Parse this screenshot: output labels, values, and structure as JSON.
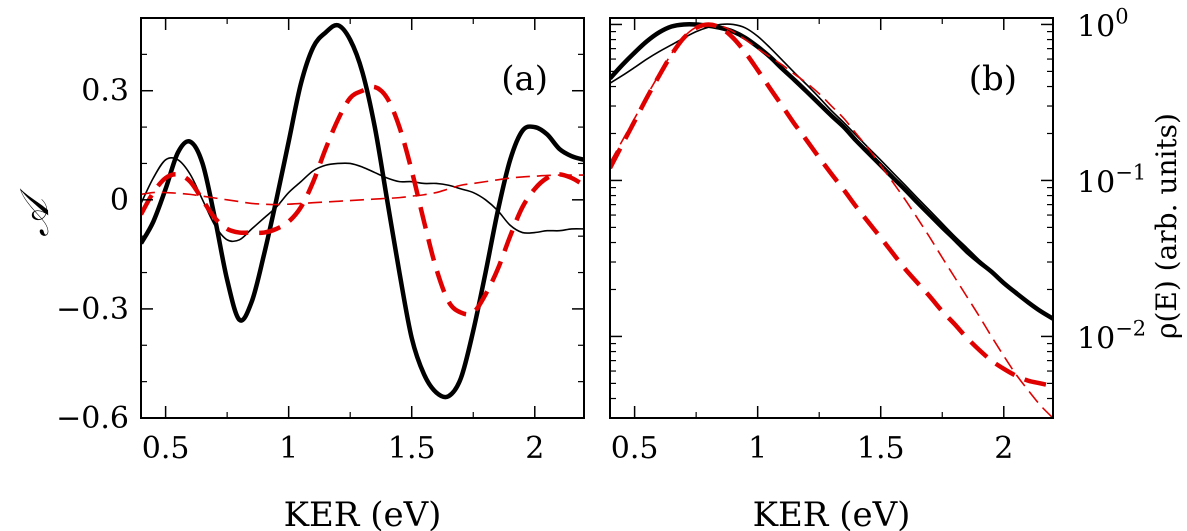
{
  "chart_data": [
    {
      "type": "line",
      "panel_label": "(a)",
      "xlabel": "KER (eV)",
      "ylabel": "𝒜",
      "xlim": [
        0.4,
        2.2
      ],
      "ylim": [
        -0.6,
        0.5
      ],
      "xticks": [
        {
          "v": 0.5,
          "label": "0.5"
        },
        {
          "v": 1,
          "label": "1"
        },
        {
          "v": 1.5,
          "label": "1.5"
        },
        {
          "v": 2,
          "label": "2"
        }
      ],
      "yticks": [
        {
          "v": -0.6,
          "label": "−0.6"
        },
        {
          "v": -0.3,
          "label": "−0.3"
        },
        {
          "v": 0,
          "label": "0"
        },
        {
          "v": 0.3,
          "label": "0.3"
        }
      ],
      "series": [
        {
          "style": "black-thick",
          "color": "#000000",
          "x": [
            0.4,
            0.45,
            0.5,
            0.55,
            0.6,
            0.65,
            0.7,
            0.75,
            0.8,
            0.85,
            0.9,
            0.95,
            1.0,
            1.05,
            1.1,
            1.15,
            1.2,
            1.25,
            1.3,
            1.35,
            1.4,
            1.45,
            1.5,
            1.55,
            1.6,
            1.65,
            1.7,
            1.75,
            1.8,
            1.85,
            1.9,
            1.95,
            2.0,
            2.05,
            2.1,
            2.15,
            2.2
          ],
          "y": [
            -0.12,
            -0.06,
            0.03,
            0.13,
            0.16,
            0.1,
            -0.05,
            -0.22,
            -0.33,
            -0.28,
            -0.15,
            0.0,
            0.16,
            0.32,
            0.42,
            0.46,
            0.48,
            0.44,
            0.35,
            0.2,
            0.0,
            -0.2,
            -0.38,
            -0.48,
            -0.53,
            -0.54,
            -0.49,
            -0.36,
            -0.2,
            -0.03,
            0.11,
            0.19,
            0.2,
            0.18,
            0.14,
            0.12,
            0.11
          ]
        },
        {
          "style": "black-thin",
          "color": "#000000",
          "x": [
            0.4,
            0.45,
            0.5,
            0.55,
            0.6,
            0.65,
            0.7,
            0.75,
            0.8,
            0.85,
            0.9,
            0.95,
            1.0,
            1.05,
            1.1,
            1.15,
            1.2,
            1.25,
            1.3,
            1.35,
            1.4,
            1.45,
            1.5,
            1.55,
            1.6,
            1.65,
            1.7,
            1.75,
            1.8,
            1.85,
            1.9,
            1.95,
            2.0,
            2.05,
            2.1,
            2.15,
            2.2
          ],
          "y": [
            -0.01,
            0.06,
            0.11,
            0.11,
            0.07,
            0.0,
            -0.07,
            -0.11,
            -0.11,
            -0.08,
            -0.05,
            -0.02,
            0.02,
            0.05,
            0.08,
            0.095,
            0.1,
            0.1,
            0.09,
            0.075,
            0.06,
            0.05,
            0.05,
            0.045,
            0.045,
            0.04,
            0.03,
            0.02,
            0.0,
            -0.03,
            -0.07,
            -0.09,
            -0.09,
            -0.085,
            -0.085,
            -0.08,
            -0.08
          ]
        },
        {
          "style": "red-thick-dashed",
          "color": "#e00000",
          "x": [
            0.4,
            0.45,
            0.5,
            0.55,
            0.6,
            0.65,
            0.7,
            0.75,
            0.8,
            0.85,
            0.9,
            0.95,
            1.0,
            1.05,
            1.1,
            1.15,
            1.2,
            1.25,
            1.3,
            1.35,
            1.4,
            1.45,
            1.5,
            1.55,
            1.6,
            1.65,
            1.7,
            1.75,
            1.8,
            1.85,
            1.9,
            1.95,
            2.0,
            2.05,
            2.1,
            2.15,
            2.2
          ],
          "y": [
            -0.04,
            0.02,
            0.06,
            0.07,
            0.05,
            0.0,
            -0.05,
            -0.08,
            -0.09,
            -0.09,
            -0.09,
            -0.08,
            -0.06,
            -0.02,
            0.05,
            0.14,
            0.22,
            0.28,
            0.3,
            0.31,
            0.28,
            0.2,
            0.08,
            -0.06,
            -0.19,
            -0.28,
            -0.31,
            -0.31,
            -0.26,
            -0.19,
            -0.1,
            -0.02,
            0.03,
            0.06,
            0.07,
            0.06,
            0.04
          ]
        },
        {
          "style": "red-thin-dashed",
          "color": "#e00000",
          "x": [
            0.4,
            0.45,
            0.5,
            0.55,
            0.6,
            0.65,
            0.7,
            0.75,
            0.8,
            0.85,
            0.9,
            0.95,
            1.0,
            1.05,
            1.1,
            1.15,
            1.2,
            1.25,
            1.3,
            1.35,
            1.4,
            1.45,
            1.5,
            1.55,
            1.6,
            1.65,
            1.7,
            1.75,
            1.8,
            1.85,
            1.9,
            1.95,
            2.0,
            2.05,
            2.1,
            2.15,
            2.2
          ],
          "y": [
            0.015,
            0.02,
            0.02,
            0.018,
            0.015,
            0.01,
            0.005,
            0.0,
            -0.005,
            -0.01,
            -0.012,
            -0.013,
            -0.012,
            -0.01,
            -0.008,
            -0.006,
            -0.004,
            -0.002,
            0.0,
            0.002,
            0.004,
            0.006,
            0.01,
            0.014,
            0.02,
            0.03,
            0.04,
            0.045,
            0.05,
            0.055,
            0.06,
            0.063,
            0.065,
            0.067,
            0.068,
            0.068,
            0.068
          ]
        }
      ]
    },
    {
      "type": "line",
      "panel_label": "(b)",
      "xlabel": "KER (eV)",
      "ylabel": "ρ(E) (arb. units)",
      "xlim": [
        0.4,
        2.2
      ],
      "yscale": "log",
      "ylim": [
        0.003,
        1.1
      ],
      "xticks": [
        {
          "v": 0.5,
          "label": "0.5"
        },
        {
          "v": 1,
          "label": "1"
        },
        {
          "v": 1.5,
          "label": "1.5"
        },
        {
          "v": 2,
          "label": "2"
        }
      ],
      "yticks": [
        {
          "v": 1,
          "base": "10",
          "exp": "0"
        },
        {
          "v": 0.1,
          "base": "10",
          "exp": "−1"
        },
        {
          "v": 0.01,
          "base": "10",
          "exp": "−2"
        }
      ],
      "series": [
        {
          "style": "black-thick",
          "color": "#000000",
          "x": [
            0.4,
            0.45,
            0.5,
            0.55,
            0.6,
            0.65,
            0.7,
            0.75,
            0.8,
            0.85,
            0.9,
            0.95,
            1.0,
            1.05,
            1.1,
            1.15,
            1.2,
            1.25,
            1.3,
            1.35,
            1.4,
            1.45,
            1.5,
            1.55,
            1.6,
            1.65,
            1.7,
            1.75,
            1.8,
            1.85,
            1.9,
            1.95,
            2.0,
            2.05,
            2.1,
            2.15,
            2.2
          ],
          "y": [
            0.45,
            0.55,
            0.66,
            0.78,
            0.89,
            0.97,
            1.0,
            1.0,
            0.98,
            0.95,
            0.9,
            0.82,
            0.72,
            0.62,
            0.52,
            0.44,
            0.37,
            0.31,
            0.26,
            0.22,
            0.18,
            0.15,
            0.125,
            0.104,
            0.087,
            0.072,
            0.06,
            0.05,
            0.042,
            0.035,
            0.03,
            0.026,
            0.022,
            0.019,
            0.0165,
            0.0145,
            0.013
          ]
        },
        {
          "style": "black-thin",
          "color": "#000000",
          "x": [
            0.4,
            0.45,
            0.5,
            0.55,
            0.6,
            0.65,
            0.7,
            0.75,
            0.8,
            0.85,
            0.9,
            0.95,
            1.0,
            1.05,
            1.1,
            1.15,
            1.2,
            1.25,
            1.3,
            1.35,
            1.4,
            1.45,
            1.5,
            1.55,
            1.6,
            1.65,
            1.7,
            1.75,
            1.8,
            1.85,
            1.9,
            1.95,
            2.0,
            2.05,
            2.1,
            2.15,
            2.2
          ],
          "y": [
            0.42,
            0.47,
            0.53,
            0.6,
            0.67,
            0.74,
            0.82,
            0.9,
            0.96,
            1.0,
            1.0,
            0.95,
            0.84,
            0.71,
            0.59,
            0.49,
            0.41,
            0.34,
            0.28,
            0.235,
            0.195,
            0.162,
            0.135,
            0.112,
            0.093,
            0.077,
            0.064,
            0.053,
            0.044,
            0.037,
            0.031,
            0.0265,
            0.0225,
            0.0192,
            0.0167,
            0.0147,
            0.013
          ]
        },
        {
          "style": "red-thick-dashed",
          "color": "#e00000",
          "x": [
            0.4,
            0.45,
            0.5,
            0.55,
            0.6,
            0.65,
            0.7,
            0.75,
            0.8,
            0.85,
            0.9,
            0.95,
            1.0,
            1.05,
            1.1,
            1.15,
            1.2,
            1.25,
            1.3,
            1.35,
            1.4,
            1.45,
            1.5,
            1.55,
            1.6,
            1.65,
            1.7,
            1.75,
            1.8,
            1.85,
            1.9,
            1.95,
            2.0,
            2.05,
            2.1,
            2.15,
            2.2
          ],
          "y": [
            0.12,
            0.17,
            0.24,
            0.34,
            0.47,
            0.64,
            0.82,
            0.95,
            1.0,
            0.95,
            0.82,
            0.66,
            0.51,
            0.39,
            0.3,
            0.23,
            0.18,
            0.14,
            0.11,
            0.087,
            0.068,
            0.054,
            0.043,
            0.034,
            0.027,
            0.022,
            0.018,
            0.0145,
            0.012,
            0.0098,
            0.0082,
            0.007,
            0.0062,
            0.0056,
            0.0052,
            0.005,
            0.0048
          ]
        },
        {
          "style": "red-thin-dashed",
          "color": "#e00000",
          "x": [
            0.4,
            0.45,
            0.5,
            0.55,
            0.6,
            0.65,
            0.7,
            0.75,
            0.8,
            0.85,
            0.9,
            0.95,
            1.0,
            1.05,
            1.1,
            1.15,
            1.2,
            1.25,
            1.3,
            1.35,
            1.4,
            1.45,
            1.5,
            1.55,
            1.6,
            1.65,
            1.7,
            1.75,
            1.8,
            1.85,
            1.9,
            1.95,
            2.0,
            2.05,
            2.1,
            2.15,
            2.2
          ],
          "y": [
            0.13,
            0.18,
            0.25,
            0.35,
            0.48,
            0.65,
            0.83,
            0.96,
            1.0,
            0.98,
            0.9,
            0.8,
            0.7,
            0.62,
            0.55,
            0.48,
            0.42,
            0.36,
            0.3,
            0.25,
            0.2,
            0.16,
            0.125,
            0.097,
            0.075,
            0.057,
            0.043,
            0.032,
            0.024,
            0.018,
            0.0135,
            0.01,
            0.0075,
            0.0057,
            0.0045,
            0.0036,
            0.003
          ]
        }
      ]
    }
  ]
}
